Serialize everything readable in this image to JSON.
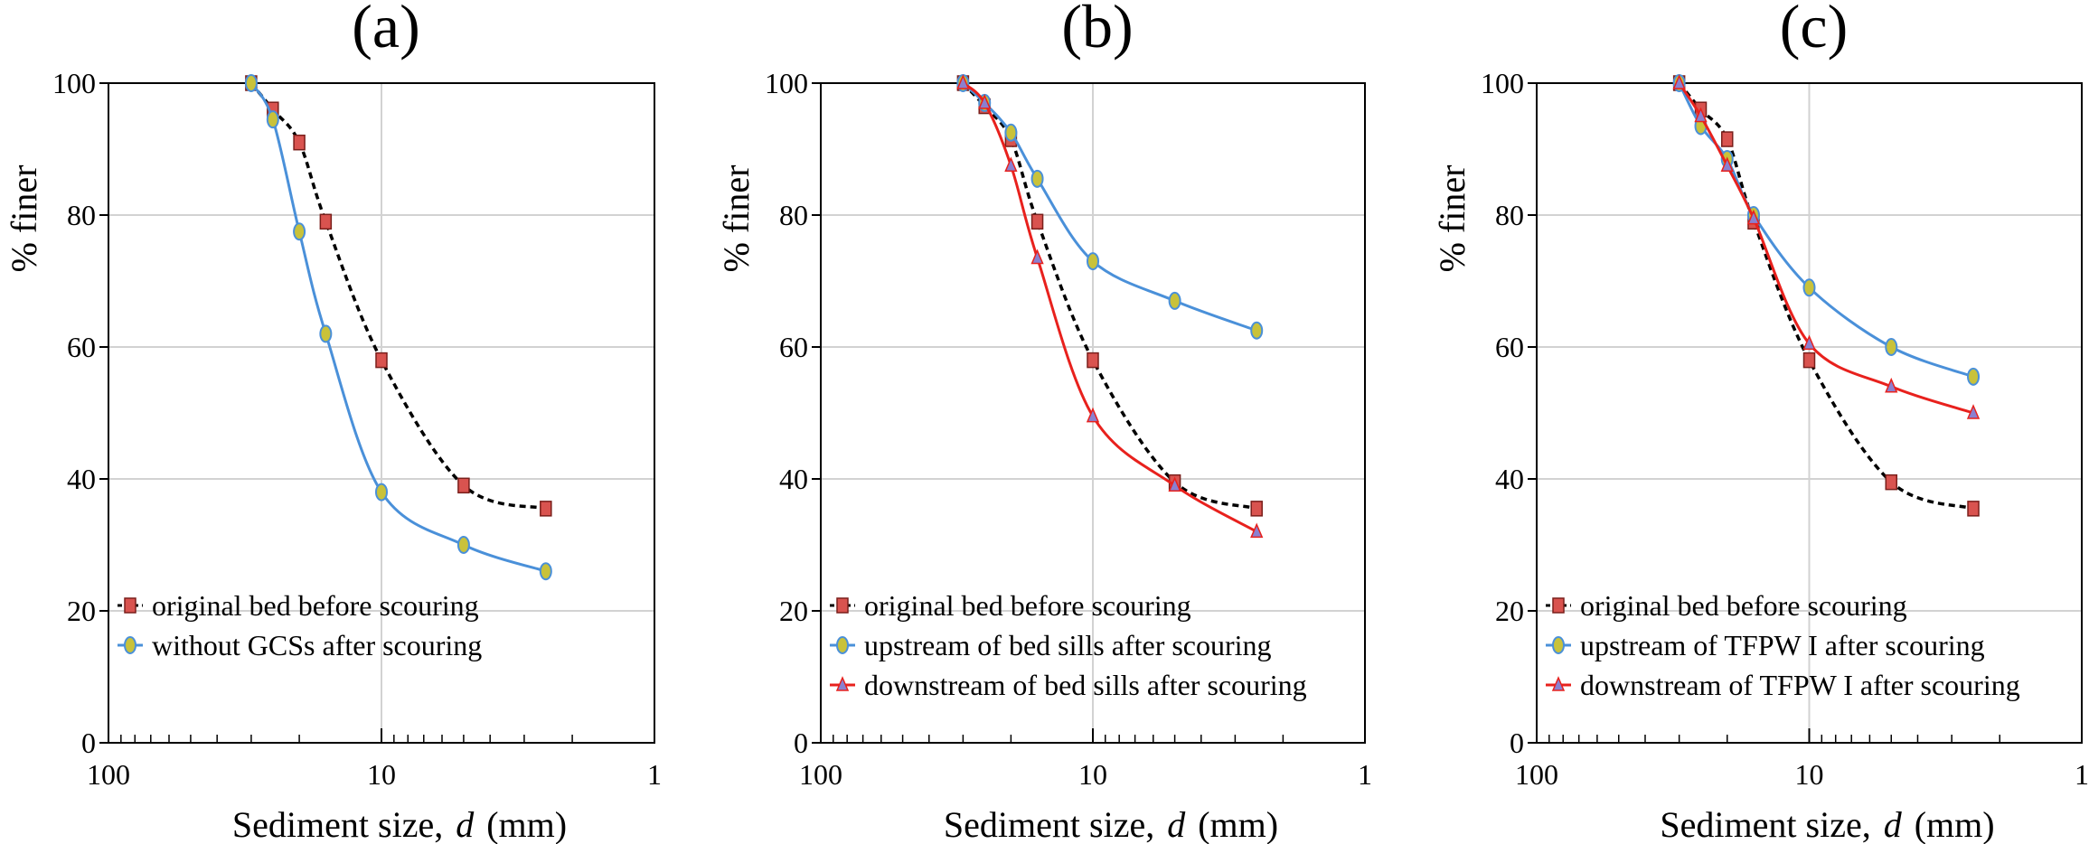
{
  "chart_data": [
    {
      "type": "line",
      "title": "(a)",
      "xlabel_prefix": "Sediment size,",
      "xlabel_var": "d",
      "xlabel_unit": "(mm)",
      "ylabel": "% finer",
      "xscale": "log-reversed",
      "xlim": [
        100,
        1
      ],
      "ylim": [
        0,
        100
      ],
      "xticks": [
        {
          "value": 100,
          "label": "100"
        },
        {
          "value": 10,
          "label": "10"
        },
        {
          "value": 1,
          "label": "1"
        }
      ],
      "yticks": [
        0,
        20,
        40,
        60,
        80,
        100
      ],
      "grid": true,
      "legend_position": "bottom-left",
      "series": [
        {
          "name": "original bed before scouring",
          "color": "#000000",
          "dashed": true,
          "marker": "square",
          "x": [
            30,
            25,
            20,
            16,
            10,
            5,
            2.5
          ],
          "y": [
            100,
            96,
            91,
            79,
            58,
            39,
            35.5
          ]
        },
        {
          "name": "without GCSs after scouring",
          "color": "#4a90d9",
          "dashed": false,
          "marker": "ellipse",
          "x": [
            30,
            25,
            20,
            16,
            10,
            5,
            2.5
          ],
          "y": [
            100,
            94.5,
            77.5,
            62,
            38,
            30,
            26
          ]
        }
      ]
    },
    {
      "type": "line",
      "title": "(b)",
      "xlabel_prefix": "Sediment size,",
      "xlabel_var": "d",
      "xlabel_unit": "(mm)",
      "ylabel": "% finer",
      "xscale": "log-reversed",
      "xlim": [
        100,
        1
      ],
      "ylim": [
        0,
        100
      ],
      "xticks": [
        {
          "value": 100,
          "label": "100"
        },
        {
          "value": 10,
          "label": "10"
        },
        {
          "value": 1,
          "label": "1"
        }
      ],
      "yticks": [
        0,
        20,
        40,
        60,
        80,
        100
      ],
      "grid": true,
      "legend_position": "bottom-left",
      "series": [
        {
          "name": "original bed before scouring",
          "color": "#000000",
          "dashed": true,
          "marker": "square",
          "x": [
            30,
            25,
            20,
            16,
            10,
            5,
            2.5
          ],
          "y": [
            100,
            96.5,
            91.5,
            79,
            58,
            39.5,
            35.5
          ]
        },
        {
          "name": "upstream of  bed sills after scouring",
          "color": "#4a90d9",
          "dashed": false,
          "marker": "ellipse",
          "x": [
            30,
            25,
            20,
            16,
            10,
            5,
            2.5
          ],
          "y": [
            100,
            97,
            92.5,
            85.5,
            73,
            67,
            62.5
          ]
        },
        {
          "name": "downstream of bed sills  after scouring",
          "color": "#e8211d",
          "dashed": false,
          "marker": "triangle",
          "x": [
            30,
            25,
            20,
            16,
            10,
            5,
            2.5
          ],
          "y": [
            100,
            97,
            87.5,
            73.5,
            49.5,
            39,
            32
          ]
        }
      ]
    },
    {
      "type": "line",
      "title": "(c)",
      "xlabel_prefix": "Sediment size,",
      "xlabel_var": "d",
      "xlabel_unit": "(mm)",
      "ylabel": "% finer",
      "xscale": "log-reversed",
      "xlim": [
        100,
        1
      ],
      "ylim": [
        0,
        100
      ],
      "xticks": [
        {
          "value": 100,
          "label": "100"
        },
        {
          "value": 10,
          "label": "10"
        },
        {
          "value": 1,
          "label": "1"
        }
      ],
      "yticks": [
        0,
        20,
        40,
        60,
        80,
        100
      ],
      "grid": true,
      "legend_position": "bottom-left",
      "series": [
        {
          "name": "original bed before scouring",
          "color": "#000000",
          "dashed": true,
          "marker": "square",
          "x": [
            30,
            25,
            20,
            16,
            10,
            5,
            2.5
          ],
          "y": [
            100,
            96,
            91.5,
            79,
            58,
            39.5,
            35.5
          ]
        },
        {
          "name": "upstream of TFPW I after scouring",
          "color": "#4a90d9",
          "dashed": false,
          "marker": "ellipse",
          "x": [
            30,
            25,
            20,
            16,
            10,
            5,
            2.5
          ],
          "y": [
            100,
            93.5,
            88.5,
            80,
            69,
            60,
            55.5
          ]
        },
        {
          "name": "downstream of TFPW I after scouring",
          "color": "#e8211d",
          "dashed": false,
          "marker": "triangle",
          "x": [
            30,
            25,
            20,
            16,
            10,
            5,
            2.5
          ],
          "y": [
            100,
            95,
            87.5,
            79.5,
            60.5,
            54,
            50
          ]
        }
      ]
    }
  ]
}
